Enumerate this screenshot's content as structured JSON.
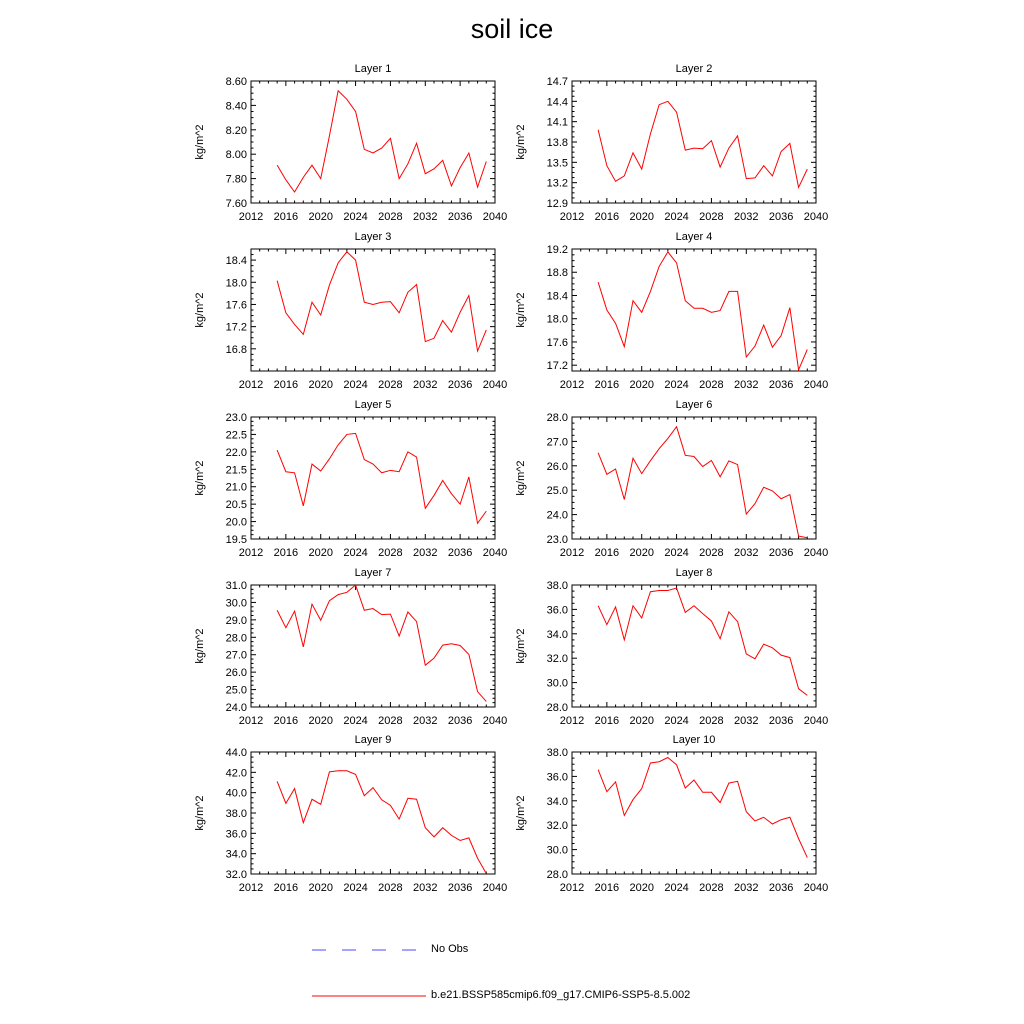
{
  "title": "soil ice",
  "legend": {
    "obs_label": "No Obs",
    "obs_color": "#4a4aff",
    "model_label": "b.e21.BSSP585cmip6.f09_g17.CMIP6-SSP5-8.5.002",
    "model_color": "#ff0000"
  },
  "chart_data": [
    {
      "type": "line",
      "title": "Layer 1",
      "ylabel": "kg/m^2",
      "xlim": [
        2012,
        2040
      ],
      "ylim": [
        7.6,
        8.6
      ],
      "xticks": [
        "2012",
        "2016",
        "2020",
        "2024",
        "2028",
        "2032",
        "2036",
        "2040"
      ],
      "yticks": [
        "7.60",
        "7.80",
        "8.00",
        "8.20",
        "8.40",
        "8.60"
      ],
      "series": [
        {
          "x": [
            2015,
            2016,
            2017,
            2018,
            2019,
            2020,
            2021,
            2022,
            2023,
            2024,
            2025,
            2026,
            2027,
            2028,
            2029,
            2030,
            2031,
            2032,
            2033,
            2034,
            2035,
            2036,
            2037,
            2038,
            2039
          ],
          "y": [
            7.91,
            7.79,
            7.69,
            7.81,
            7.91,
            7.8,
            8.15,
            8.52,
            8.45,
            8.35,
            8.04,
            8.01,
            8.05,
            8.13,
            7.8,
            7.92,
            8.09,
            7.84,
            7.88,
            7.95,
            7.74,
            7.89,
            8.01,
            7.73,
            7.94
          ]
        }
      ]
    },
    {
      "type": "line",
      "title": "Layer 2",
      "ylabel": "kg/m^2",
      "xlim": [
        2012,
        2040
      ],
      "ylim": [
        12.9,
        14.7
      ],
      "xticks": [
        "2012",
        "2016",
        "2020",
        "2024",
        "2028",
        "2032",
        "2036",
        "2040"
      ],
      "yticks": [
        "12.9",
        "13.2",
        "13.5",
        "13.8",
        "14.1",
        "14.4",
        "14.7"
      ],
      "series": [
        {
          "x": [
            2015,
            2016,
            2017,
            2018,
            2019,
            2020,
            2021,
            2022,
            2023,
            2024,
            2025,
            2026,
            2027,
            2028,
            2029,
            2030,
            2031,
            2032,
            2033,
            2034,
            2035,
            2036,
            2037,
            2038,
            2039
          ],
          "y": [
            13.98,
            13.45,
            13.22,
            13.3,
            13.64,
            13.4,
            13.92,
            14.35,
            14.4,
            14.24,
            13.68,
            13.71,
            13.7,
            13.82,
            13.43,
            13.71,
            13.89,
            13.26,
            13.27,
            13.45,
            13.3,
            13.66,
            13.78,
            13.13,
            13.4
          ]
        }
      ]
    },
    {
      "type": "line",
      "title": "Layer 3",
      "ylabel": "kg/m^2",
      "xlim": [
        2012,
        2040
      ],
      "ylim": [
        16.4,
        18.6
      ],
      "xticks": [
        "2012",
        "2016",
        "2020",
        "2024",
        "2028",
        "2032",
        "2036",
        "2040"
      ],
      "yticks": [
        "16.8",
        "17.2",
        "17.6",
        "18.0",
        "18.4"
      ],
      "series": [
        {
          "x": [
            2015,
            2016,
            2017,
            2018,
            2019,
            2020,
            2021,
            2022,
            2023,
            2024,
            2025,
            2026,
            2027,
            2028,
            2029,
            2030,
            2031,
            2032,
            2033,
            2034,
            2035,
            2036,
            2037,
            2038,
            2039
          ],
          "y": [
            18.03,
            17.45,
            17.24,
            17.06,
            17.64,
            17.41,
            17.95,
            18.35,
            18.55,
            18.4,
            17.64,
            17.6,
            17.64,
            17.65,
            17.45,
            17.82,
            17.96,
            16.93,
            16.99,
            17.31,
            17.1,
            17.46,
            17.76,
            16.76,
            17.14
          ]
        }
      ]
    },
    {
      "type": "line",
      "title": "Layer 4",
      "ylabel": "kg/m^2",
      "xlim": [
        2012,
        2040
      ],
      "ylim": [
        17.1,
        19.2
      ],
      "xticks": [
        "2012",
        "2016",
        "2020",
        "2024",
        "2028",
        "2032",
        "2036",
        "2040"
      ],
      "yticks": [
        "17.2",
        "17.6",
        "18.0",
        "18.4",
        "18.8",
        "19.2"
      ],
      "series": [
        {
          "x": [
            2015,
            2016,
            2017,
            2018,
            2019,
            2020,
            2021,
            2022,
            2023,
            2024,
            2025,
            2026,
            2027,
            2028,
            2029,
            2030,
            2031,
            2032,
            2033,
            2034,
            2035,
            2036,
            2037,
            2038,
            2039
          ],
          "y": [
            18.63,
            18.15,
            17.92,
            17.52,
            18.31,
            18.11,
            18.47,
            18.9,
            19.15,
            18.96,
            18.31,
            18.18,
            18.18,
            18.11,
            18.14,
            18.47,
            18.47,
            17.34,
            17.53,
            17.89,
            17.51,
            17.71,
            18.19,
            17.12,
            17.47
          ]
        }
      ]
    },
    {
      "type": "line",
      "title": "Layer 5",
      "ylabel": "kg/m^2",
      "xlim": [
        2012,
        2040
      ],
      "ylim": [
        19.5,
        23.0
      ],
      "xticks": [
        "2012",
        "2016",
        "2020",
        "2024",
        "2028",
        "2032",
        "2036",
        "2040"
      ],
      "yticks": [
        "19.5",
        "20.0",
        "20.5",
        "21.0",
        "21.5",
        "22.0",
        "22.5",
        "23.0"
      ],
      "series": [
        {
          "x": [
            2015,
            2016,
            2017,
            2018,
            2019,
            2020,
            2021,
            2022,
            2023,
            2024,
            2025,
            2026,
            2027,
            2028,
            2029,
            2030,
            2031,
            2032,
            2033,
            2034,
            2035,
            2036,
            2037,
            2038,
            2039
          ],
          "y": [
            22.05,
            21.43,
            21.4,
            20.45,
            21.65,
            21.45,
            21.8,
            22.2,
            22.5,
            22.53,
            21.78,
            21.65,
            21.4,
            21.47,
            21.43,
            22.0,
            21.85,
            20.38,
            20.75,
            21.18,
            20.8,
            20.5,
            21.28,
            19.95,
            20.3
          ]
        }
      ]
    },
    {
      "type": "line",
      "title": "Layer 6",
      "ylabel": "kg/m^2",
      "xlim": [
        2012,
        2040
      ],
      "ylim": [
        23.0,
        28.0
      ],
      "xticks": [
        "2012",
        "2016",
        "2020",
        "2024",
        "2028",
        "2032",
        "2036",
        "2040"
      ],
      "yticks": [
        "23.0",
        "24.0",
        "25.0",
        "26.0",
        "27.0",
        "28.0"
      ],
      "series": [
        {
          "x": [
            2015,
            2016,
            2017,
            2018,
            2019,
            2020,
            2021,
            2022,
            2023,
            2024,
            2025,
            2026,
            2027,
            2028,
            2029,
            2030,
            2031,
            2032,
            2033,
            2034,
            2035,
            2036,
            2037,
            2038,
            2039
          ],
          "y": [
            26.53,
            25.65,
            25.87,
            24.62,
            26.31,
            25.68,
            26.21,
            26.7,
            27.12,
            27.6,
            26.43,
            26.38,
            25.97,
            26.22,
            25.55,
            26.2,
            26.05,
            24.02,
            24.45,
            25.12,
            24.97,
            24.65,
            24.82,
            23.12,
            23.05
          ]
        }
      ]
    },
    {
      "type": "line",
      "title": "Layer 7",
      "ylabel": "kg/m^2",
      "xlim": [
        2012,
        2040
      ],
      "ylim": [
        24.0,
        31.0
      ],
      "xticks": [
        "2012",
        "2016",
        "2020",
        "2024",
        "2028",
        "2032",
        "2036",
        "2040"
      ],
      "yticks": [
        "24.0",
        "25.0",
        "26.0",
        "27.0",
        "28.0",
        "29.0",
        "30.0",
        "31.0"
      ],
      "series": [
        {
          "x": [
            2015,
            2016,
            2017,
            2018,
            2019,
            2020,
            2021,
            2022,
            2023,
            2024,
            2025,
            2026,
            2027,
            2028,
            2029,
            2030,
            2031,
            2032,
            2033,
            2034,
            2035,
            2036,
            2037,
            2038,
            2039
          ],
          "y": [
            29.55,
            28.55,
            29.5,
            27.45,
            29.9,
            28.98,
            30.1,
            30.45,
            30.58,
            31.0,
            29.55,
            29.65,
            29.3,
            29.33,
            28.07,
            29.45,
            28.9,
            26.4,
            26.8,
            27.55,
            27.63,
            27.53,
            27.02,
            24.88,
            24.32
          ]
        }
      ]
    },
    {
      "type": "line",
      "title": "Layer 8",
      "ylabel": "kg/m^2",
      "xlim": [
        2012,
        2040
      ],
      "ylim": [
        28.0,
        38.0
      ],
      "xticks": [
        "2012",
        "2016",
        "2020",
        "2024",
        "2028",
        "2032",
        "2036",
        "2040"
      ],
      "yticks": [
        "28.0",
        "30.0",
        "32.0",
        "34.0",
        "36.0",
        "38.0"
      ],
      "series": [
        {
          "x": [
            2015,
            2016,
            2017,
            2018,
            2019,
            2020,
            2021,
            2022,
            2023,
            2024,
            2025,
            2026,
            2027,
            2028,
            2029,
            2030,
            2031,
            2032,
            2033,
            2034,
            2035,
            2036,
            2037,
            2038,
            2039
          ],
          "y": [
            36.3,
            34.75,
            36.2,
            33.5,
            36.3,
            35.3,
            37.45,
            37.55,
            37.55,
            37.75,
            35.75,
            36.3,
            35.65,
            35.05,
            33.6,
            35.8,
            35.0,
            32.35,
            31.95,
            33.15,
            32.85,
            32.25,
            32.05,
            29.5,
            28.95
          ]
        }
      ]
    },
    {
      "type": "line",
      "title": "Layer 9",
      "ylabel": "kg/m^2",
      "xlim": [
        2012,
        2040
      ],
      "ylim": [
        32.0,
        44.0
      ],
      "xticks": [
        "2012",
        "2016",
        "2020",
        "2024",
        "2028",
        "2032",
        "2036",
        "2040"
      ],
      "yticks": [
        "32.0",
        "34.0",
        "36.0",
        "38.0",
        "40.0",
        "42.0",
        "44.0"
      ],
      "series": [
        {
          "x": [
            2015,
            2016,
            2017,
            2018,
            2019,
            2020,
            2021,
            2022,
            2023,
            2024,
            2025,
            2026,
            2027,
            2028,
            2029,
            2030,
            2031,
            2032,
            2033,
            2034,
            2035,
            2036,
            2037,
            2038,
            2039
          ],
          "y": [
            41.1,
            38.95,
            40.4,
            37.05,
            39.35,
            38.85,
            42.05,
            42.15,
            42.15,
            41.8,
            39.7,
            40.5,
            39.3,
            38.75,
            37.4,
            39.45,
            39.35,
            36.55,
            35.65,
            36.55,
            35.8,
            35.3,
            35.55,
            33.55,
            32.05
          ]
        }
      ]
    },
    {
      "type": "line",
      "title": "Layer 10",
      "ylabel": "kg/m^2",
      "xlim": [
        2012,
        2040
      ],
      "ylim": [
        28.0,
        38.0
      ],
      "xticks": [
        "2012",
        "2016",
        "2020",
        "2024",
        "2028",
        "2032",
        "2036",
        "2040"
      ],
      "yticks": [
        "28.0",
        "30.0",
        "32.0",
        "34.0",
        "36.0",
        "38.0"
      ],
      "series": [
        {
          "x": [
            2015,
            2016,
            2017,
            2018,
            2019,
            2020,
            2021,
            2022,
            2023,
            2024,
            2025,
            2026,
            2027,
            2028,
            2029,
            2030,
            2031,
            2032,
            2033,
            2034,
            2035,
            2036,
            2037,
            2038,
            2039
          ],
          "y": [
            36.55,
            34.75,
            35.55,
            32.8,
            34.1,
            35.0,
            37.1,
            37.2,
            37.55,
            36.95,
            35.05,
            35.7,
            34.7,
            34.7,
            33.85,
            35.45,
            35.6,
            33.1,
            32.35,
            32.65,
            32.1,
            32.45,
            32.65,
            30.9,
            29.35
          ]
        }
      ]
    }
  ]
}
